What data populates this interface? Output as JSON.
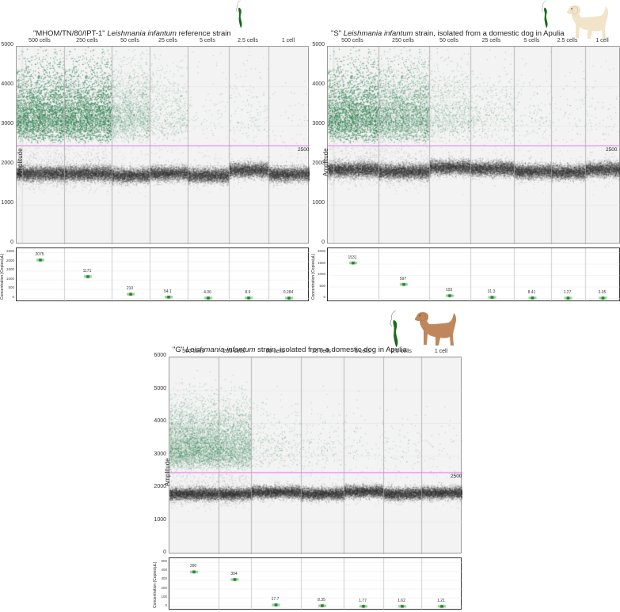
{
  "colors": {
    "positive_droplet": "#2e7d4f",
    "negative_droplet": "#3a3a3a",
    "threshold_line": "#e07be0",
    "plot_bg": "#f3f3f3",
    "marker": "#1f7a2a",
    "marker_halo": "#8fd08f",
    "parasite_icon": "#1a6b1a",
    "dog_cream": "#f2e4c8",
    "dog_brown": "#c0875c"
  },
  "panels": [
    {
      "id": "ref",
      "title_pre": "\"MHOM/TN/80/IPT-1\" ",
      "title_italic": "Leishmania infantum",
      "title_post": " reference strain",
      "icons": [
        "parasite-icon"
      ],
      "threshold_label": "2500"
    },
    {
      "id": "s",
      "title_pre": "\"S\" ",
      "title_italic": "Leishmania infantum",
      "title_post": " strain, isolated from a domestic dog in Apulia",
      "icons": [
        "parasite-icon",
        "cream-dog-icon"
      ],
      "threshold_label": "2500"
    },
    {
      "id": "g",
      "title_pre": "\"G\" ",
      "title_italic": "Leishmania infantum",
      "title_post": " strain, isolated from a domestic dog in Apulia",
      "icons": [
        "parasite-icon",
        "brown-dog-icon"
      ],
      "threshold_label": "2500"
    }
  ],
  "chart_data": [
    {
      "type": "scatter",
      "title": "\"MHOM/TN/80/IPT-1\" Leishmania infantum reference strain",
      "subplots": [
        {
          "name": "Droplet amplitude",
          "ylabel": "Amplitude",
          "ylim": [
            0,
            5000
          ],
          "yticks": [
            0,
            1000,
            2000,
            3000,
            4000,
            5000
          ],
          "threshold": 2500,
          "categories": [
            "500 cells",
            "250 cells",
            "50 cells",
            "25 cells",
            "5 cells",
            "2.5 cells",
            "1 cell"
          ],
          "negative_band_center": [
            1800,
            1800,
            1750,
            1800,
            1750,
            1880,
            1780
          ],
          "positive_density": [
            0.9,
            0.85,
            0.25,
            0.08,
            0.01,
            0.02,
            0.005
          ],
          "subdivisions": [
            2,
            1,
            1,
            1,
            1,
            1,
            1
          ]
        },
        {
          "name": "Concentration",
          "ylabel": "Concentration (Copies/µL)",
          "ylim": [
            0,
            2500
          ],
          "yticks": [
            0,
            500,
            1000,
            1500,
            2000,
            2500
          ],
          "categories": [
            "500 cells",
            "250 cells",
            "50 cells",
            "25 cells",
            "5 cells",
            "2.5 cells",
            "1 cell"
          ],
          "values": [
            2075,
            1171,
            210,
            54.1,
            4.06,
            8.9,
            0.284
          ],
          "value_labels": [
            "2075",
            "1171",
            "210",
            "54.1",
            "4.06",
            "8.9",
            "0.284"
          ]
        }
      ]
    },
    {
      "type": "scatter",
      "title": "\"S\" Leishmania infantum strain, isolated from a domestic dog in Apulia",
      "subplots": [
        {
          "name": "Droplet amplitude",
          "ylabel": "Amplitude",
          "ylim": [
            0,
            5000
          ],
          "yticks": [
            0,
            1000,
            2000,
            3000,
            4000,
            5000
          ],
          "threshold": 2500,
          "categories": [
            "500 cells",
            "250 cells",
            "50 cells",
            "25 cells",
            "5 cells",
            "2.5 cells",
            "1 cell"
          ],
          "negative_band_center": [
            1900,
            1850,
            1950,
            1920,
            1850,
            1830,
            1900
          ],
          "positive_density": [
            0.8,
            0.5,
            0.12,
            0.05,
            0.02,
            0.01,
            0.01
          ],
          "subdivisions": [
            2,
            1,
            1,
            1,
            1,
            1,
            1
          ]
        },
        {
          "name": "Concentration",
          "ylabel": "Concentration (Copies/µL)",
          "ylim": [
            0,
            2000
          ],
          "yticks": [
            0,
            500,
            1000,
            1500,
            2000
          ],
          "categories": [
            "500 cells",
            "250 cells",
            "50 cells",
            "25 cells",
            "5 cells",
            "2.5 cells",
            "1 cell"
          ],
          "values": [
            1531,
            597,
            103,
            31.3,
            8.41,
            1.27,
            3.05
          ],
          "value_labels": [
            "1531",
            "597",
            "103",
            "31.3",
            "8.41",
            "1.27",
            "3.05"
          ]
        }
      ]
    },
    {
      "type": "scatter",
      "title": "\"G\" Leishmania infantum strain, isolated from a domestic dog in Apulia",
      "subplots": [
        {
          "name": "Droplet amplitude",
          "ylabel": "Amplitude",
          "ylim": [
            0,
            6000
          ],
          "yticks": [
            0,
            1000,
            2000,
            3000,
            4000,
            5000,
            6000
          ],
          "threshold": 2500,
          "categories": [
            "500 cells",
            "250 cells",
            "50 cells",
            "25 cells",
            "5 cells",
            "2.5 cells",
            "1 cell"
          ],
          "negative_band_center": [
            1850,
            1850,
            1900,
            1850,
            1920,
            1850,
            1880
          ],
          "positive_density": [
            0.45,
            0.35,
            0.04,
            0.02,
            0.01,
            0.01,
            0.005
          ],
          "subdivisions": [
            1,
            1,
            1,
            1,
            1,
            1,
            1
          ]
        },
        {
          "name": "Concentration",
          "ylabel": "Concentration (Copies/µL)",
          "ylim": [
            0,
            500
          ],
          "yticks": [
            0,
            100,
            200,
            300,
            400,
            500
          ],
          "categories": [
            "500 cells",
            "250 cells",
            "50 cells",
            "25 cells",
            "5 cells",
            "2.5 cells",
            "1 cell"
          ],
          "values": [
            390,
            304,
            17.7,
            8.35,
            1.77,
            1.62,
            1.21
          ],
          "value_labels": [
            "390",
            "304",
            "17.7",
            "8.35",
            "1.77",
            "1.62",
            "1.21"
          ]
        }
      ]
    }
  ]
}
